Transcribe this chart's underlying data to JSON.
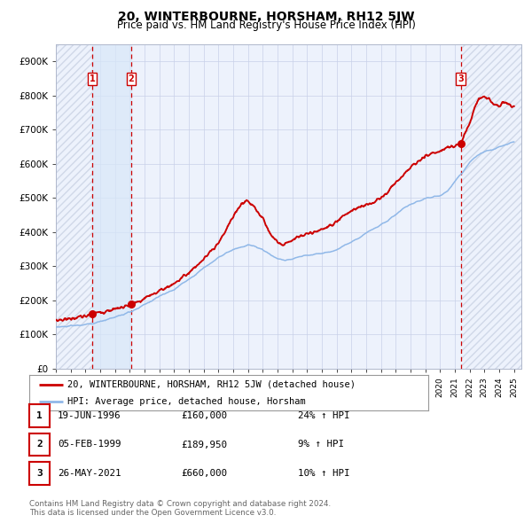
{
  "title": "20, WINTERBOURNE, HORSHAM, RH12 5JW",
  "subtitle": "Price paid vs. HM Land Registry's House Price Index (HPI)",
  "xlim": [
    1994.0,
    2025.5
  ],
  "ylim": [
    0,
    950000
  ],
  "yticks": [
    0,
    100000,
    200000,
    300000,
    400000,
    500000,
    600000,
    700000,
    800000,
    900000
  ],
  "ytick_labels": [
    "£0",
    "£100K",
    "£200K",
    "£300K",
    "£400K",
    "£500K",
    "£600K",
    "£700K",
    "£800K",
    "£900K"
  ],
  "xticks": [
    1994,
    1995,
    1996,
    1997,
    1998,
    1999,
    2000,
    2001,
    2002,
    2003,
    2004,
    2005,
    2006,
    2007,
    2008,
    2009,
    2010,
    2011,
    2012,
    2013,
    2014,
    2015,
    2016,
    2017,
    2018,
    2019,
    2020,
    2021,
    2022,
    2023,
    2024,
    2025
  ],
  "background_color": "#ffffff",
  "plot_bg_color": "#edf2fc",
  "grid_color": "#c8d0e8",
  "hpi_line_color": "#90b8e8",
  "price_line_color": "#cc0000",
  "sale_marker_color": "#cc0000",
  "vline_color": "#cc0000",
  "shade_color": "#d8e8f8",
  "hatch_color": "#d0d8e8",
  "sales": [
    {
      "num": 1,
      "date": "19-JUN-1996",
      "year": 1996.46,
      "price": 160000,
      "label": "1"
    },
    {
      "num": 2,
      "date": "05-FEB-1999",
      "year": 1999.09,
      "price": 189950,
      "label": "2"
    },
    {
      "num": 3,
      "date": "26-MAY-2021",
      "year": 2021.4,
      "price": 660000,
      "label": "3"
    }
  ],
  "legend_entries": [
    "20, WINTERBOURNE, HORSHAM, RH12 5JW (detached house)",
    "HPI: Average price, detached house, Horsham"
  ],
  "table_rows": [
    [
      "1",
      "19-JUN-1996",
      "£160,000",
      "24% ↑ HPI"
    ],
    [
      "2",
      "05-FEB-1999",
      "£189,950",
      "9% ↑ HPI"
    ],
    [
      "3",
      "26-MAY-2021",
      "£660,000",
      "10% ↑ HPI"
    ]
  ],
  "footnote1": "Contains HM Land Registry data © Crown copyright and database right 2024.",
  "footnote2": "This data is licensed under the Open Government Licence v3.0."
}
